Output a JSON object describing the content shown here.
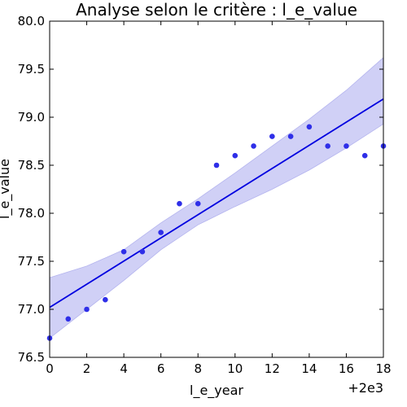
{
  "chart_data": {
    "type": "scatter",
    "title": "Analyse selon le critère : l_e_value",
    "xlabel": "l_e_year",
    "ylabel": "l_e_value",
    "x_offset_label": "+2e3",
    "xlim": [
      0,
      18
    ],
    "ylim": [
      76.5,
      80.0
    ],
    "x_ticks": [
      "0",
      "2",
      "4",
      "6",
      "8",
      "10",
      "12",
      "14",
      "16",
      "18"
    ],
    "y_ticks": [
      "76.5",
      "77.0",
      "77.5",
      "78.0",
      "78.5",
      "79.0",
      "79.5",
      "80.0"
    ],
    "points": {
      "x": [
        0,
        1,
        2,
        3,
        4,
        5,
        6,
        7,
        8,
        9,
        10,
        11,
        12,
        13,
        14,
        15,
        16,
        17,
        18
      ],
      "y": [
        76.7,
        76.9,
        77.0,
        77.1,
        77.6,
        77.6,
        77.8,
        78.1,
        78.1,
        78.5,
        78.6,
        78.7,
        78.8,
        78.8,
        78.9,
        78.7,
        78.7,
        78.6,
        78.7
      ]
    },
    "regression": {
      "x": [
        0,
        18
      ],
      "y": [
        77.02,
        79.19
      ]
    },
    "confidence_band": {
      "x": [
        0,
        2,
        4,
        6,
        8,
        10,
        12,
        14,
        16,
        18
      ],
      "lower": [
        76.7,
        77.0,
        77.3,
        77.62,
        77.88,
        78.07,
        78.25,
        78.45,
        78.68,
        78.93
      ],
      "upper": [
        77.33,
        77.45,
        77.62,
        77.9,
        78.15,
        78.42,
        78.7,
        78.98,
        79.28,
        79.62
      ]
    },
    "colors": {
      "points": "#2f2fe8",
      "line": "#0000e0",
      "band": "#c8c8f4"
    },
    "grid": false,
    "legend": "none"
  }
}
